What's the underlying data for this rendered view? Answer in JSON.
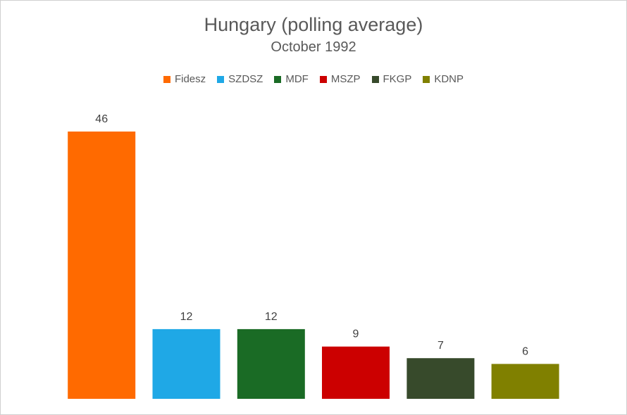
{
  "chart_data": {
    "type": "bar",
    "title": "Hungary (polling average)",
    "subtitle": "October 1992",
    "categories": [
      "Fidesz",
      "SZDSZ",
      "MDF",
      "MSZP",
      "FKGP",
      "KDNP"
    ],
    "values": [
      46,
      12,
      12,
      9,
      7,
      6
    ],
    "colors": [
      "#ff6a00",
      "#1fa8e6",
      "#1a6b25",
      "#cc0000",
      "#374a2b",
      "#808000"
    ],
    "legend": [
      "Fidesz",
      "SZDSZ",
      "MDF",
      "MSZP",
      "FKGP",
      "KDNP"
    ],
    "legend_position": "top",
    "ylim": [
      0,
      46
    ],
    "grid": false,
    "data_labels": [
      "46",
      "12",
      "12",
      "9",
      "7",
      "6"
    ]
  }
}
